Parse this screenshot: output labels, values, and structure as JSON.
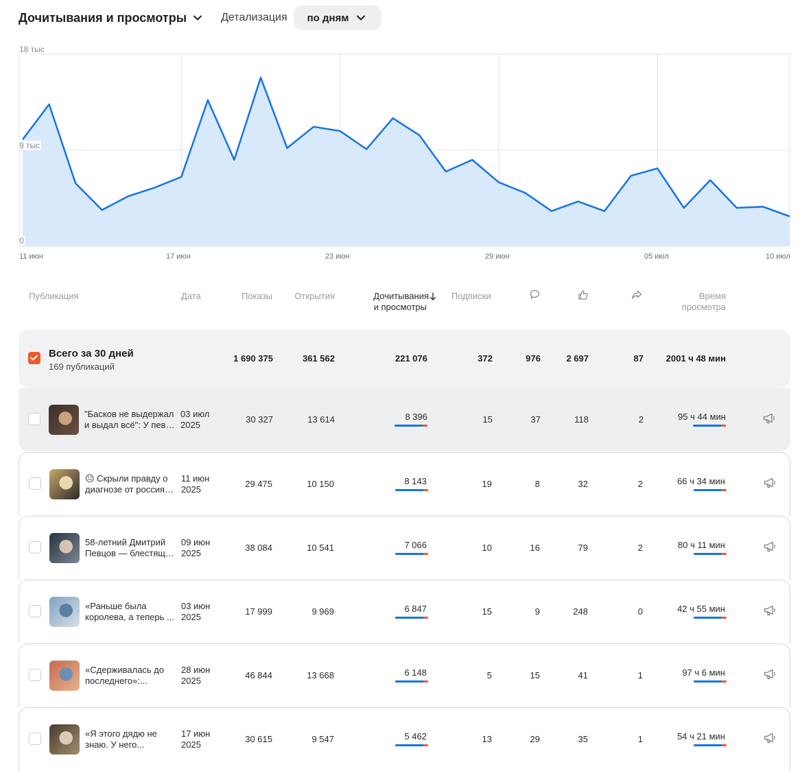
{
  "header": {
    "title": "Дочитывания и просмотры",
    "detail_label": "Детализация",
    "period": "по дням"
  },
  "chart_data": {
    "type": "area",
    "y_ticks": [
      "18 тыс",
      "9 тыс",
      "0"
    ],
    "x_ticks": [
      "11 июн",
      "17 июн",
      "23 июн",
      "29 июн",
      "05 июл",
      "10 июл"
    ],
    "ylim": [
      0,
      18000
    ],
    "grid": true,
    "x": [
      "11 июн",
      "12 июн",
      "13 июн",
      "14 июн",
      "15 июн",
      "16 июн",
      "17 июн",
      "18 июн",
      "19 июн",
      "20 июн",
      "21 июн",
      "22 июн",
      "23 июн",
      "24 июн",
      "25 июн",
      "26 июн",
      "27 июн",
      "28 июн",
      "29 июн",
      "30 июн",
      "01 июл",
      "02 июл",
      "03 июл",
      "04 июл",
      "05 июл",
      "06 июл",
      "07 июл",
      "08 июл",
      "09 июл",
      "10 июл"
    ],
    "series": [
      {
        "values": [
          10000,
          13300,
          5900,
          3400,
          4700,
          5500,
          6500,
          13700,
          8100,
          15800,
          9200,
          11200,
          10800,
          9100,
          12000,
          10400,
          7000,
          8100,
          6000,
          5000,
          3300,
          4200,
          3300,
          6600,
          7300,
          3600,
          6200,
          3600,
          3700,
          2800
        ]
      }
    ],
    "colors": {
      "line": "#1673e6",
      "fill": "#d8e9fb",
      "grid": "#e0e0e0"
    }
  },
  "table": {
    "headers": {
      "publication": "Публикация",
      "date": "Дата",
      "shows": "Показы",
      "opens": "Открытия",
      "reads_line1": "Дочитывания",
      "reads_line2": "и просмотры",
      "subs": "Подписки",
      "comments_icon": "comment-icon",
      "likes_icon": "like-icon",
      "shares_icon": "share-icon",
      "time_line1": "Время",
      "time_line2": "просмотра"
    },
    "total": {
      "title": "Всего за 30 дней",
      "subtitle": "169 публикаций",
      "shows": "1 690 375",
      "opens": "361 562",
      "reads": "221 076",
      "subs": "372",
      "comments": "976",
      "likes": "2 697",
      "shares": "87",
      "time": "2001 ч 48 мин"
    },
    "rows": [
      {
        "title1": "\"Басков не выдержал",
        "title2": "и выдал всё\": У певц...",
        "date1": "03 июл",
        "date2": "2025",
        "shows": "30 327",
        "opens": "13 614",
        "reads": "8 396",
        "subs": "15",
        "comments": "37",
        "likes": "118",
        "shares": "2",
        "time": "95 ч 44 мин"
      },
      {
        "title1": "😐 Скрыли правду о",
        "title2": "диагнозе от россиян...",
        "date1": "11 июн",
        "date2": "2025",
        "shows": "29 475",
        "opens": "10 150",
        "reads": "8 143",
        "subs": "19",
        "comments": "8",
        "likes": "32",
        "shares": "2",
        "time": "66 ч 34 мин"
      },
      {
        "title1": "58-летний Дмитрий",
        "title2": "Певцов — блестящи...",
        "date1": "09 июн",
        "date2": "2025",
        "shows": "38 084",
        "opens": "10 541",
        "reads": "7 066",
        "subs": "10",
        "comments": "16",
        "likes": "79",
        "shares": "2",
        "time": "80 ч 11 мин"
      },
      {
        "title1": "«Раньше была",
        "title2": "королева, а теперь ...",
        "date1": "03 июн",
        "date2": "2025",
        "shows": "17 999",
        "opens": "9 969",
        "reads": "6 847",
        "subs": "15",
        "comments": "9",
        "likes": "248",
        "shares": "0",
        "time": "42 ч 55 мин"
      },
      {
        "title1": "«Сдерживалась до",
        "title2": "последнего»:...",
        "date1": "28 июн",
        "date2": "2025",
        "shows": "46 844",
        "opens": "13 668",
        "reads": "6 148",
        "subs": "5",
        "comments": "15",
        "likes": "41",
        "shares": "1",
        "time": "97 ч 6 мин"
      },
      {
        "title1": "«Я этого дядю не",
        "title2": "знаю. У него...",
        "date1": "17 июн",
        "date2": "2025",
        "shows": "30 615",
        "opens": "9 547",
        "reads": "5 462",
        "subs": "13",
        "comments": "29",
        "likes": "35",
        "shares": "1",
        "time": "54 ч 21 мин"
      }
    ]
  }
}
